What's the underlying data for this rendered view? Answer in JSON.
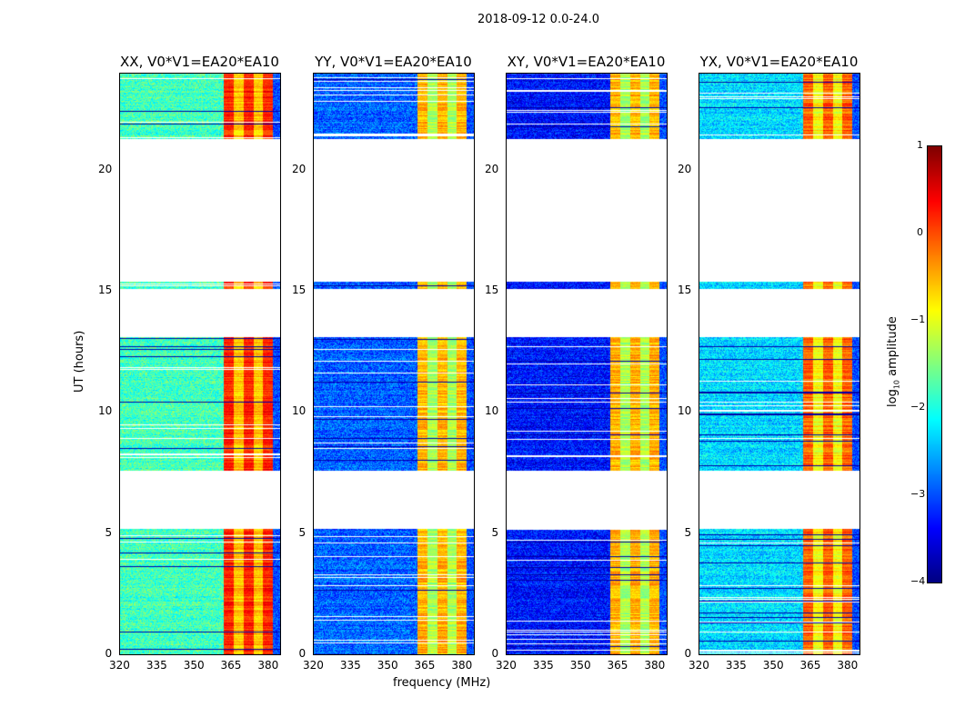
{
  "chart_data": {
    "type": "heatmap",
    "title": "2018-09-12 0.0-24.0",
    "xlabel": "frequency (MHz)",
    "ylabel": "UT (hours)",
    "xlim": [
      320,
      385
    ],
    "ylim": [
      0,
      24
    ],
    "xticks": [
      "320",
      "335",
      "350",
      "365",
      "380"
    ],
    "yticks": [
      "0",
      "5",
      "10",
      "15",
      "20"
    ],
    "colorbar": {
      "label": "log10 amplitude",
      "label_main": "log",
      "label_sub": "10",
      "label_tail": " amplitude",
      "range": [
        -4,
        1
      ],
      "ticks": [
        "1",
        "0",
        "−1",
        "−2",
        "−3",
        "−4"
      ],
      "colormap": "jet"
    },
    "data_time_ranges_hours": [
      [
        0,
        5.2
      ],
      [
        7.6,
        13.1
      ],
      [
        15.1,
        15.4
      ],
      [
        21.3,
        24
      ]
    ],
    "bright_band_mhz": [
      362,
      382
    ],
    "panels": [
      {
        "title": "XX, V0*V1=EA20*EA10",
        "background_log_amp": -1.8,
        "band_log_amp": -0.1
      },
      {
        "title": "YY, V0*V1=EA20*EA10",
        "background_log_amp": -2.9,
        "band_log_amp": -0.8
      },
      {
        "title": "XY, V0*V1=EA20*EA10",
        "background_log_amp": -3.3,
        "band_log_amp": -0.8
      },
      {
        "title": "YX, V0*V1=EA20*EA10",
        "background_log_amp": -2.3,
        "band_log_amp": -0.4
      }
    ]
  }
}
